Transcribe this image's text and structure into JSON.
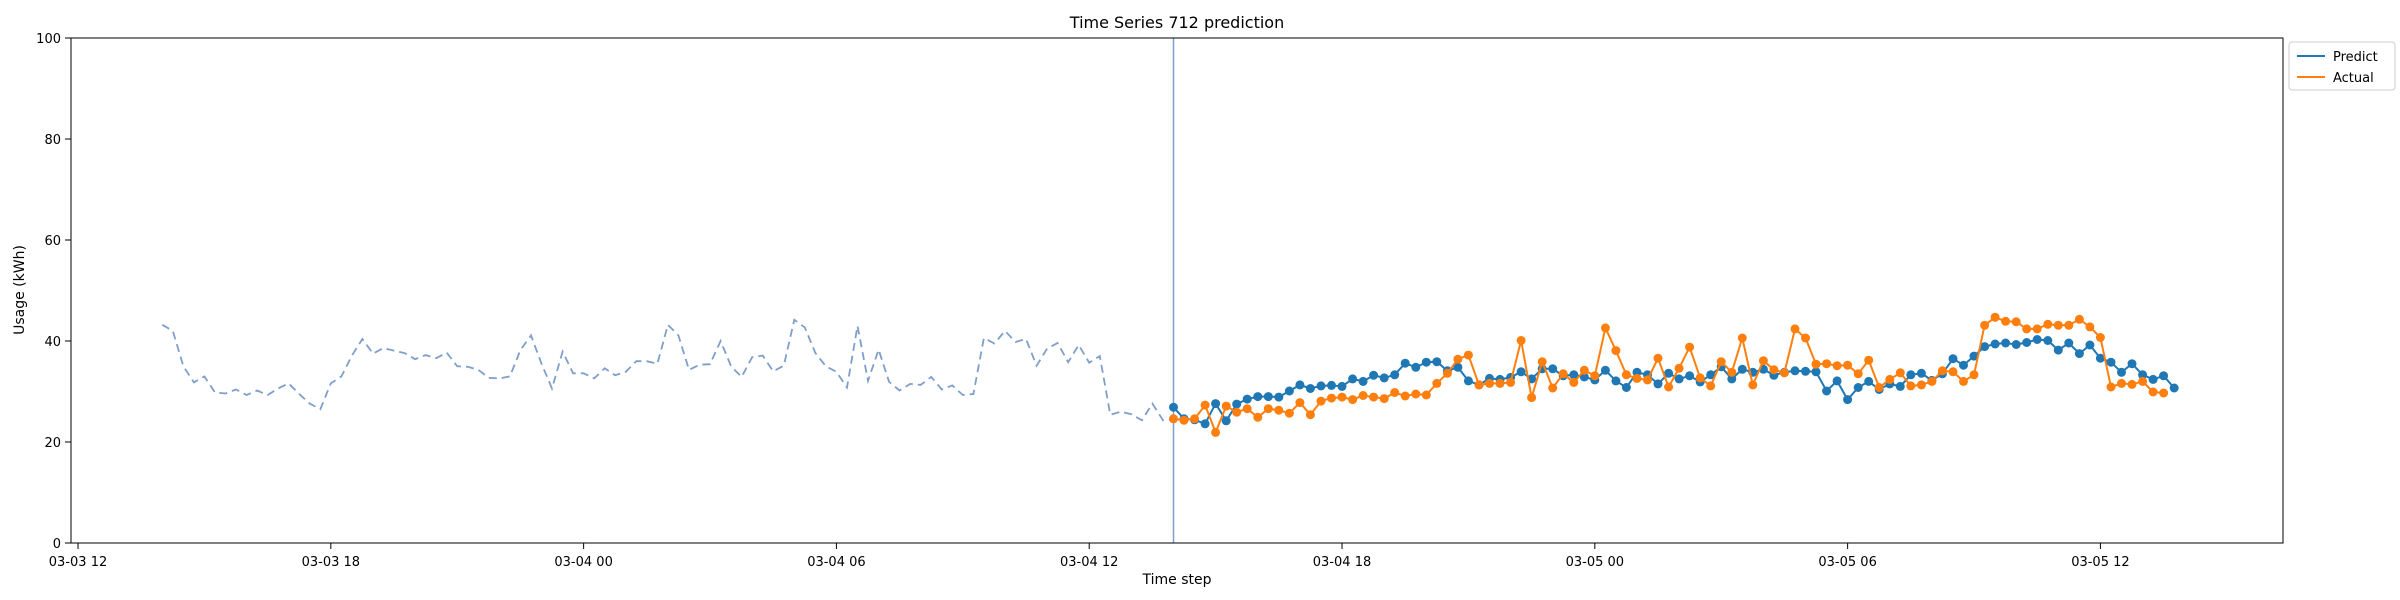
{
  "chart_data": {
    "type": "line",
    "title": "Time Series 712 prediction",
    "xlabel": "Time step",
    "ylabel": "Usage (kWh)",
    "ylim": [
      0,
      100
    ],
    "yticks": [
      0,
      20,
      40,
      60,
      80,
      100
    ],
    "x_unit": "time",
    "x_range": [
      "2024-03-03 11:50",
      "2024-03-05 16:20"
    ],
    "xticks": [
      {
        "t": "2024-03-03 12:00",
        "label": "03-03 12"
      },
      {
        "t": "2024-03-03 18:00",
        "label": "03-03 18"
      },
      {
        "t": "2024-03-04 00:00",
        "label": "03-04 00"
      },
      {
        "t": "2024-03-04 06:00",
        "label": "03-04 06"
      },
      {
        "t": "2024-03-04 12:00",
        "label": "03-04 12"
      },
      {
        "t": "2024-03-04 18:00",
        "label": "03-04 18"
      },
      {
        "t": "2024-03-05 00:00",
        "label": "03-05 00"
      },
      {
        "t": "2024-03-05 06:00",
        "label": "03-05 06"
      },
      {
        "t": "2024-03-05 12:00",
        "label": "03-05 12"
      }
    ],
    "grid": false,
    "legend_position": "upper-right-outside",
    "forecast_start": "2024-03-04 14:00",
    "history": {
      "start": "2024-03-03 14:00",
      "step_minutes": 15,
      "color": "#7f9fca",
      "style": "dashed",
      "values": [
        43.2,
        42.0,
        35.0,
        31.8,
        33.0,
        29.8,
        29.6,
        30.4,
        29.3,
        30.2,
        29.3,
        30.6,
        31.6,
        29.5,
        27.6,
        26.5,
        31.6,
        33.0,
        37.1,
        40.4,
        37.5,
        38.6,
        38.1,
        37.6,
        36.4,
        37.2,
        36.6,
        37.7,
        35.0,
        34.9,
        34.3,
        32.7,
        32.6,
        33.0,
        38.2,
        41.1,
        35.5,
        30.6,
        37.9,
        33.6,
        33.6,
        32.6,
        34.6,
        33.2,
        33.9,
        36.0,
        36.0,
        35.5,
        43.2,
        41.1,
        34.3,
        35.3,
        35.4,
        40.0,
        35.0,
        32.9,
        36.8,
        37.1,
        34.0,
        35.1,
        44.2,
        42.7,
        37.6,
        35.0,
        33.9,
        30.8,
        43.0,
        32.1,
        38.3,
        31.9,
        30.2,
        31.5,
        31.3,
        32.9,
        30.4,
        31.2,
        29.3,
        29.5,
        40.6,
        39.5,
        42.0,
        39.8,
        40.4,
        35.1,
        38.5,
        39.6,
        35.8,
        39.2,
        35.7,
        37.0,
        25.4,
        26.0,
        25.5,
        24.3,
        27.6,
        24.3,
        24.5
      ]
    },
    "series": [
      {
        "name": "Predict",
        "color": "#1f77b4",
        "start": "2024-03-04 14:00",
        "step_minutes": 15,
        "values": [
          26.9,
          24.6,
          24.4,
          23.6,
          27.6,
          24.2,
          27.5,
          28.5,
          29.0,
          29.0,
          28.9,
          30.1,
          31.3,
          30.6,
          31.1,
          31.2,
          31.0,
          32.5,
          32.0,
          33.2,
          32.7,
          33.3,
          35.6,
          34.8,
          35.8,
          35.9,
          34.1,
          34.8,
          32.1,
          31.3,
          32.6,
          32.4,
          32.8,
          33.9,
          32.5,
          34.5,
          34.5,
          33.1,
          33.3,
          32.9,
          32.3,
          34.2,
          32.1,
          30.8,
          33.8,
          33.3,
          31.5,
          33.6,
          32.5,
          33.1,
          31.9,
          33.3,
          34.9,
          32.5,
          34.4,
          33.8,
          34.4,
          33.2,
          33.8,
          34.1,
          34.0,
          33.9,
          30.1,
          32.1,
          28.4,
          30.8,
          32.0,
          30.4,
          31.5,
          31.0,
          33.3,
          33.6,
          32.2,
          33.5,
          36.5,
          35.2,
          37.0,
          38.9,
          39.4,
          39.6,
          39.3,
          39.7,
          40.3,
          40.1,
          38.2,
          39.6,
          37.5,
          39.2,
          36.6,
          35.8,
          33.8,
          35.5,
          33.3,
          32.4,
          33.1,
          30.7
        ]
      },
      {
        "name": "Actual",
        "color": "#ff7f0e",
        "start": "2024-03-04 14:00",
        "step_minutes": 15,
        "values": [
          24.6,
          24.3,
          24.6,
          27.3,
          21.9,
          27.1,
          25.9,
          26.6,
          24.9,
          26.6,
          26.3,
          25.7,
          27.8,
          25.4,
          28.1,
          28.7,
          28.9,
          28.4,
          29.2,
          28.9,
          28.6,
          29.8,
          29.1,
          29.5,
          29.3,
          31.6,
          33.6,
          36.4,
          37.2,
          31.3,
          31.6,
          31.6,
          31.8,
          40.1,
          28.8,
          35.9,
          30.7,
          33.5,
          31.8,
          34.2,
          33.1,
          42.6,
          38.1,
          33.3,
          32.6,
          32.3,
          36.6,
          30.9,
          34.6,
          38.8,
          32.7,
          31.1,
          35.9,
          33.8,
          40.6,
          31.3,
          36.1,
          34.3,
          33.7,
          42.4,
          40.6,
          35.4,
          35.5,
          35.1,
          35.2,
          33.5,
          36.2,
          30.8,
          32.4,
          33.7,
          31.1,
          31.3,
          32.0,
          34.1,
          33.9,
          32.0,
          33.3,
          43.1,
          44.7,
          43.9,
          43.8,
          42.4,
          42.4,
          43.3,
          43.1,
          43.1,
          44.3,
          42.8,
          40.7,
          30.9,
          31.6,
          31.4,
          32.0,
          29.9,
          29.7
        ]
      }
    ]
  }
}
